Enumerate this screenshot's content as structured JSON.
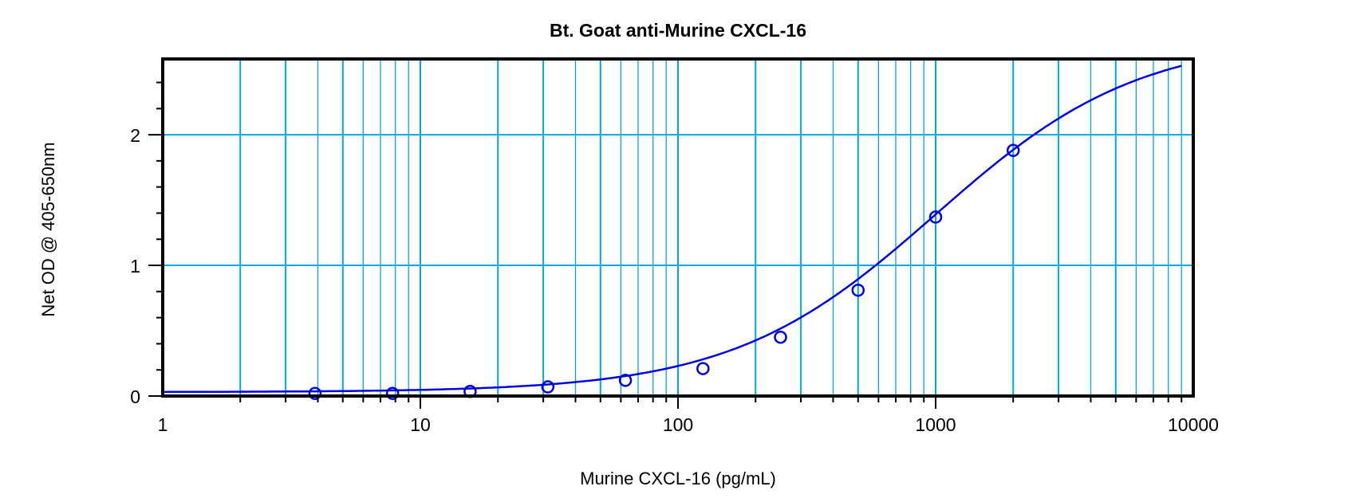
{
  "chart_data": {
    "type": "scatter",
    "title": "Bt. Goat anti-Murine CXCL-16",
    "xlabel": "Murine CXCL-16 (pg/mL)",
    "ylabel": "Net OD @ 405-650nm",
    "xscale": "log",
    "xlim": [
      1,
      10000
    ],
    "ylim": [
      0,
      2.58
    ],
    "xticks": [
      1,
      10,
      100,
      1000,
      10000
    ],
    "xtick_labels": [
      "1",
      "10",
      "100",
      "1000",
      "10000"
    ],
    "yticks": [
      0,
      1,
      2
    ],
    "ytick_labels": [
      "0",
      "1",
      "2"
    ],
    "grid": true,
    "points": {
      "x": [
        3.9,
        7.8,
        15.6,
        31.25,
        62.5,
        125,
        250,
        500,
        1000,
        2000
      ],
      "y": [
        0.02,
        0.02,
        0.035,
        0.07,
        0.12,
        0.21,
        0.45,
        0.81,
        1.37,
        1.88
      ]
    },
    "fit": {
      "model": "4PL",
      "bottom": 0.03,
      "top": 2.75,
      "ec50": 1000,
      "hill": 1.1,
      "x_range": [
        1,
        9000
      ]
    },
    "colors": {
      "grid": "#00a8e0",
      "series": "#0000dd",
      "axis": "#000000"
    }
  }
}
